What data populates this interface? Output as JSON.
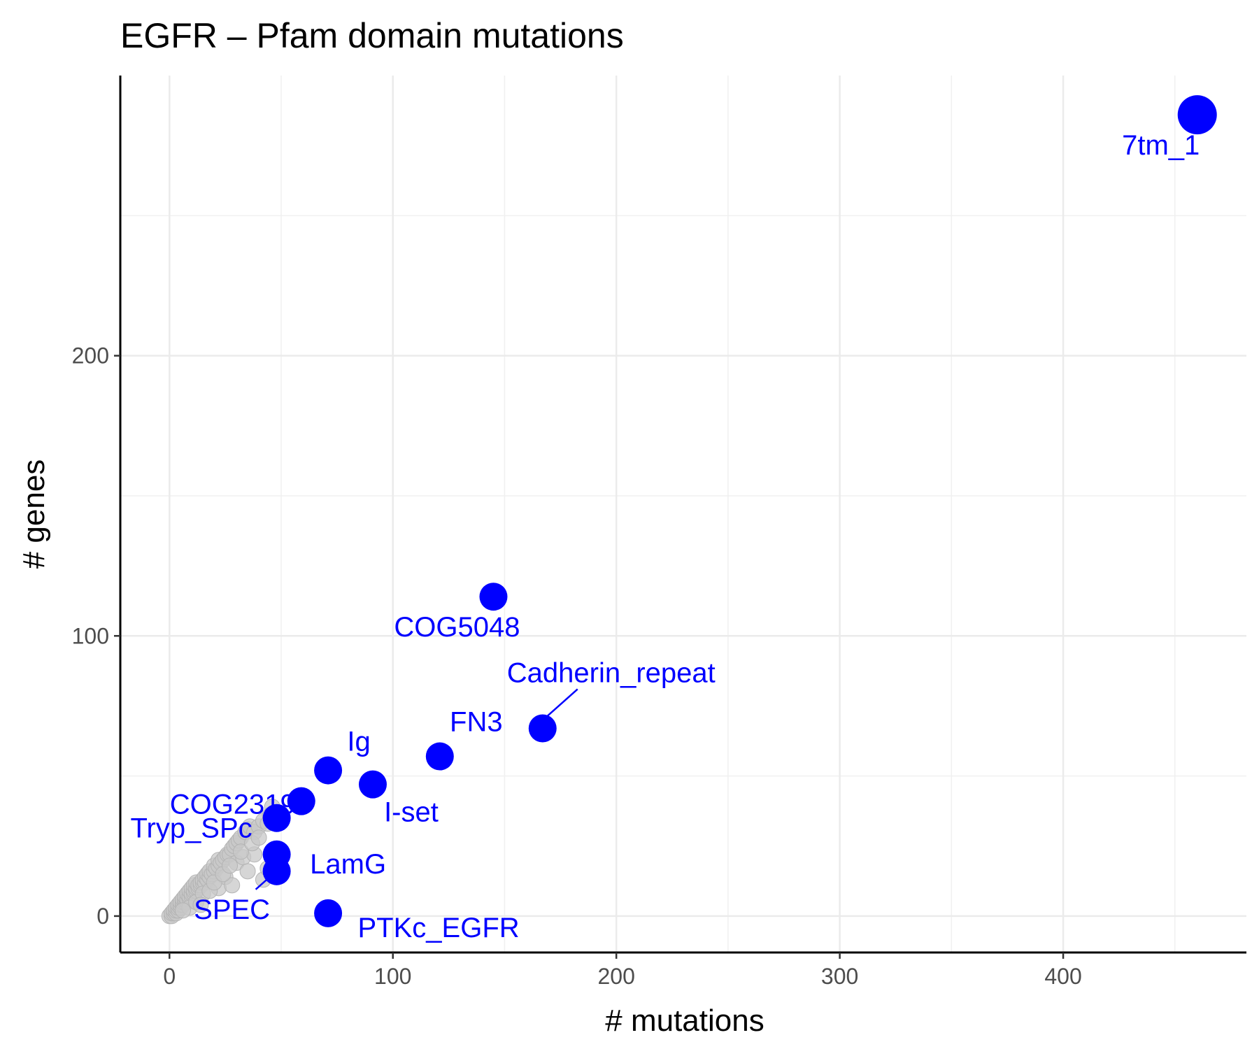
{
  "chart_data": {
    "type": "scatter",
    "title": "EGFR – Pfam domain mutations",
    "xlabel": "# mutations",
    "ylabel": "# genes",
    "xlim": [
      -22,
      482
    ],
    "ylim": [
      -13,
      300
    ],
    "x_ticks": [
      0,
      100,
      200,
      300,
      400
    ],
    "y_ticks": [
      0,
      100,
      200
    ],
    "grid": true,
    "legend": "none",
    "colors": {
      "highlight": "#0000ff",
      "background": "#c8c8c8",
      "background_stroke": "#b4b4b4"
    },
    "highlighted": [
      {
        "label": "7tm_1",
        "x": 460,
        "y": 286
      },
      {
        "label": "COG5048",
        "x": 145,
        "y": 114
      },
      {
        "label": "Cadherin_repeat",
        "x": 167,
        "y": 67
      },
      {
        "label": "FN3",
        "x": 121,
        "y": 57
      },
      {
        "label": "Ig",
        "x": 71,
        "y": 52
      },
      {
        "label": "I-set",
        "x": 91,
        "y": 47
      },
      {
        "label": "COG2319",
        "x": 59,
        "y": 41
      },
      {
        "label": "Tryp_SPc",
        "x": 48,
        "y": 35
      },
      {
        "label": "LamG",
        "x": 48,
        "y": 22
      },
      {
        "label": "SPEC",
        "x": 48,
        "y": 16
      },
      {
        "label": "PTKc_EGFR",
        "x": 71,
        "y": 1
      }
    ],
    "background_points": [
      [
        0,
        0
      ],
      [
        1,
        0
      ],
      [
        1,
        1
      ],
      [
        2,
        1
      ],
      [
        2,
        2
      ],
      [
        3,
        1
      ],
      [
        3,
        2
      ],
      [
        3,
        3
      ],
      [
        4,
        2
      ],
      [
        4,
        3
      ],
      [
        4,
        4
      ],
      [
        5,
        3
      ],
      [
        5,
        4
      ],
      [
        5,
        5
      ],
      [
        6,
        4
      ],
      [
        6,
        5
      ],
      [
        6,
        6
      ],
      [
        7,
        5
      ],
      [
        7,
        6
      ],
      [
        7,
        7
      ],
      [
        8,
        5
      ],
      [
        8,
        6
      ],
      [
        8,
        8
      ],
      [
        9,
        6
      ],
      [
        9,
        7
      ],
      [
        9,
        9
      ],
      [
        10,
        7
      ],
      [
        10,
        8
      ],
      [
        10,
        10
      ],
      [
        11,
        8
      ],
      [
        11,
        9
      ],
      [
        11,
        11
      ],
      [
        12,
        9
      ],
      [
        12,
        10
      ],
      [
        12,
        12
      ],
      [
        13,
        10
      ],
      [
        13,
        11
      ],
      [
        14,
        11
      ],
      [
        14,
        12
      ],
      [
        15,
        12
      ],
      [
        15,
        13
      ],
      [
        16,
        12
      ],
      [
        16,
        14
      ],
      [
        17,
        13
      ],
      [
        17,
        15
      ],
      [
        18,
        14
      ],
      [
        18,
        16
      ],
      [
        19,
        15
      ],
      [
        20,
        16
      ],
      [
        20,
        18
      ],
      [
        21,
        17
      ],
      [
        22,
        18
      ],
      [
        22,
        20
      ],
      [
        23,
        19
      ],
      [
        24,
        20
      ],
      [
        25,
        21
      ],
      [
        26,
        22
      ],
      [
        27,
        22
      ],
      [
        28,
        24
      ],
      [
        29,
        25
      ],
      [
        30,
        26
      ],
      [
        31,
        27
      ],
      [
        32,
        28
      ],
      [
        34,
        30
      ],
      [
        35,
        31
      ],
      [
        36,
        32
      ],
      [
        38,
        30
      ],
      [
        40,
        32
      ],
      [
        42,
        34
      ],
      [
        46,
        39
      ],
      [
        45,
        36
      ],
      [
        44,
        33
      ],
      [
        22,
        10
      ],
      [
        25,
        14
      ],
      [
        28,
        11
      ],
      [
        30,
        19
      ],
      [
        33,
        21
      ],
      [
        35,
        16
      ],
      [
        38,
        22
      ],
      [
        42,
        13
      ],
      [
        44,
        17
      ],
      [
        9,
        3
      ],
      [
        12,
        5
      ],
      [
        15,
        8
      ],
      [
        18,
        9
      ],
      [
        20,
        12
      ],
      [
        6,
        2
      ],
      [
        14,
        4
      ],
      [
        24,
        15
      ],
      [
        27,
        18
      ],
      [
        32,
        23
      ],
      [
        37,
        26
      ],
      [
        40,
        28
      ]
    ]
  }
}
